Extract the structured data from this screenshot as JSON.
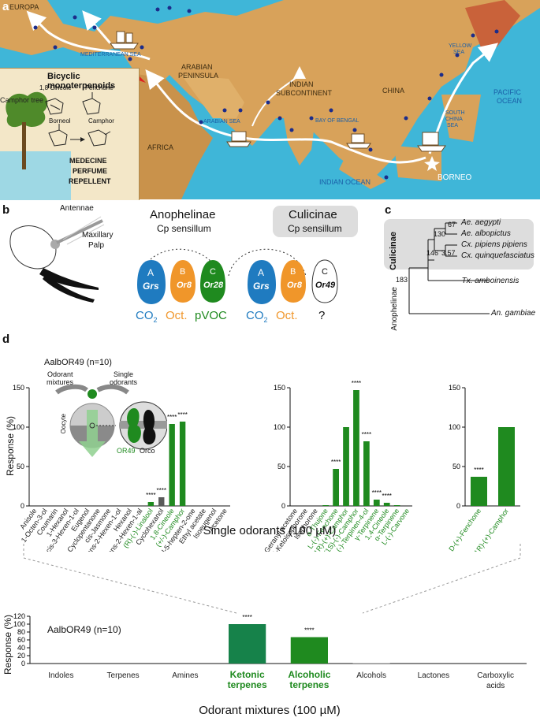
{
  "panel_labels": {
    "a": "a",
    "b": "b",
    "c": "c",
    "d": "d"
  },
  "map": {
    "labels": {
      "europa": "EUROPA",
      "arabian": "ARABIAN",
      "peninsula": "PENINSULA",
      "indian": "INDIAN",
      "subcontinent": "SUBCONTINENT",
      "china": "CHINA",
      "africa": "AFRICA",
      "borneo": "BORNEO",
      "mediterranean": "MEDITERRANEAN SEA",
      "arabian_sea": "ARABIAN SEA",
      "bay_of_bengal": "BAY OF BENGAL",
      "south_china_sea_1": "SOUTH",
      "south_china_sea_2": "CHINA",
      "south_china_sea_3": "SEA",
      "yellow_sea_1": "YELLOW",
      "yellow_sea_2": "SEA",
      "pacific_1": "PACIFIC",
      "pacific_2": "OCEAN",
      "indian_ocean": "INDIAN OCEAN"
    },
    "inset": {
      "title": "Bicyclic monoterpenoids",
      "cineole": "1,8 Cineole",
      "fenchone": "Fenchone",
      "borneol": "Borneol",
      "camphor": "Camphor",
      "camphor_tree": "Camphor tree",
      "uses_1": "MEDECINE",
      "uses_2": "PERFUME",
      "uses_3": "REPELLENT"
    }
  },
  "panel_b": {
    "antennae": "Antennae",
    "maxillary_1": "Maxillary",
    "maxillary_2": "Palp",
    "anoph_title": "Anophelinae",
    "anoph_sub": "Cp sensillum",
    "culic_title": "Culicinae",
    "culic_sub": "Cp sensillum",
    "neurons": {
      "A": "A",
      "B": "B",
      "C": "C",
      "grs": "Grs",
      "or8": "Or8",
      "or28": "Or28",
      "or49": "Or49"
    },
    "ligands": {
      "co2": "CO",
      "co2_sub": "2",
      "oct": "Oct.",
      "pvoc": "pVOC",
      "unknown": "?"
    },
    "colors": {
      "A": "#1f7bc0",
      "B": "#f0962a",
      "C": "#1f8a1f"
    }
  },
  "panel_c": {
    "clade_label": "Culicinae",
    "outgroup_label": "Anophelinae",
    "taxa": [
      "Ae. aegypti",
      "Ae. albopictus",
      "Cx. pipiens pipiens",
      "Cx. quinquefasciatus",
      "Tx. amboinensis",
      "An. gambiae"
    ],
    "node_ages": [
      "67",
      "130",
      "3.57",
      "146",
      "183"
    ]
  },
  "panel_d": {
    "title": "AalbOR49 (n=10)",
    "inset_mixtures_1": "Odorant",
    "inset_mixtures_2": "mixtures",
    "inset_single_1": "Single",
    "inset_single_2": "odorants",
    "inset_oocyte": "Oocyte",
    "inset_or49": "OR49",
    "inset_orco": "Orco",
    "ylabel": "Response (%)",
    "xlabel": "Single odorants (100 µM)",
    "significance": "****",
    "colors": {
      "active": "#1f8a1f",
      "inactive_text": "#222222"
    }
  },
  "panel_e": {
    "title": "AalbOR49 (n=10)",
    "ylabel": "Response (%)",
    "xlabel": "Odorant mixtures (100 µM)",
    "significance": "****"
  },
  "chart_data": [
    {
      "type": "bar",
      "categories": [
        "Anisole",
        "1-Octen-3-ol",
        "Coumarin",
        "1-Hexanol",
        "cis-3-Hexen-1-ol",
        "Eugenol",
        "Cyclopentanone",
        "cis-Jasmone",
        "trans-2-Hexen-1-ol",
        "Hexanol",
        "trans-2-Hexen-1-al",
        "(R)-(-)-Linalool",
        "Cyclohexanol",
        "1,8-Cineole",
        "(+/-)-Camphor",
        "6-Methyl-5-hepten-2-one",
        "Ethyl acetate",
        "Isoeugenol",
        "Acetone"
      ],
      "values": [
        0,
        0,
        0,
        0,
        0,
        1,
        0,
        0,
        0,
        0,
        1,
        5,
        11,
        104,
        107,
        1,
        0,
        0,
        0
      ],
      "highlight": [
        false,
        false,
        false,
        false,
        false,
        false,
        false,
        false,
        false,
        false,
        false,
        true,
        false,
        true,
        true,
        false,
        false,
        false,
        false
      ],
      "significant": [
        false,
        false,
        false,
        false,
        false,
        false,
        false,
        false,
        false,
        false,
        false,
        true,
        true,
        true,
        true,
        false,
        false,
        false,
        false
      ],
      "ylim": [
        0,
        150
      ],
      "yticks": [
        0,
        50,
        100,
        150
      ]
    },
    {
      "type": "bar",
      "categories": [
        "Geranyl acetone",
        "4-Ketoisophorone",
        "Isophorone",
        "α-Thujone",
        "L-(-)-Fenchone",
        "(1R)-(+)-Camphor",
        "(1S)-(-)-Camphor",
        "(-)-Terpinen-4-ol",
        "γ-Terpinene",
        "1,4-Cineole",
        "α-Terpinene",
        "L-(-)-Carvone"
      ],
      "values": [
        0,
        0,
        0,
        1,
        47,
        100,
        147,
        82,
        8,
        4,
        1,
        0
      ],
      "highlight": [
        false,
        false,
        false,
        true,
        true,
        true,
        true,
        true,
        true,
        true,
        true,
        true
      ],
      "significant": [
        false,
        false,
        false,
        false,
        true,
        false,
        true,
        true,
        true,
        true,
        false,
        false
      ],
      "ylim": [
        0,
        150
      ],
      "yticks": [
        0,
        50,
        100,
        150
      ]
    },
    {
      "type": "bar",
      "categories": [
        "D-(+)-Fenchone",
        "(1R)-(+)-Camphor"
      ],
      "values": [
        37,
        100
      ],
      "highlight": [
        true,
        true
      ],
      "significant": [
        true,
        false
      ],
      "ylim": [
        0,
        150
      ],
      "yticks": [
        0,
        50,
        100,
        150
      ]
    },
    {
      "type": "bar",
      "categories": [
        "Indoles",
        "Terpenes",
        "Amines",
        "Ketonic terpenes",
        "Alcoholic terpenes",
        "Alcohols",
        "Lactones",
        "Carboxylic acids"
      ],
      "values": [
        0,
        0,
        0,
        100,
        67,
        1,
        0,
        0
      ],
      "highlight": [
        false,
        false,
        false,
        true,
        true,
        false,
        false,
        false
      ],
      "significant": [
        false,
        false,
        false,
        true,
        true,
        false,
        false,
        false
      ],
      "ylim": [
        0,
        120
      ],
      "yticks": [
        0,
        20,
        40,
        60,
        80,
        100,
        120
      ]
    }
  ]
}
